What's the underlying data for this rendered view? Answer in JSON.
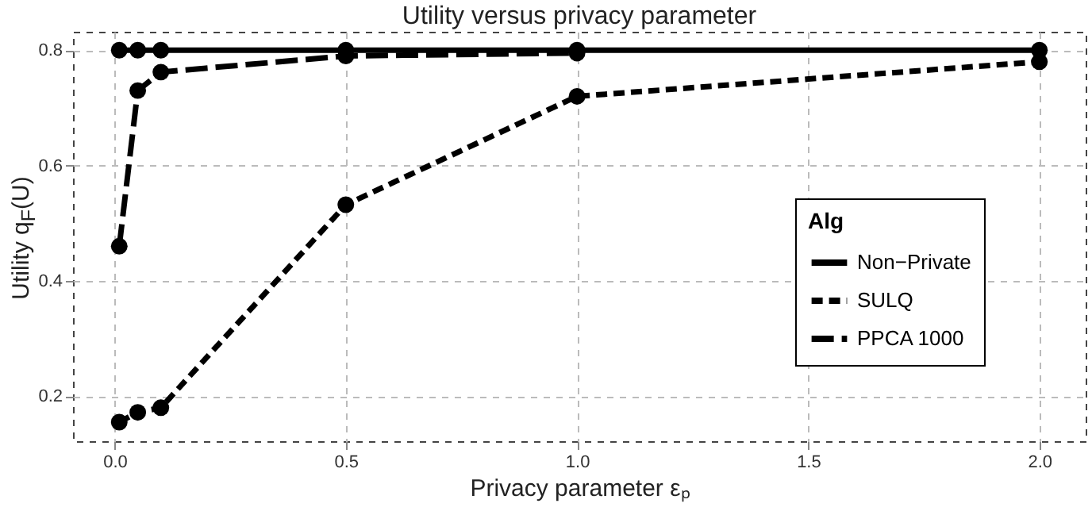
{
  "chart_data": {
    "type": "line",
    "title": "Utility versus privacy parameter",
    "xlabel": "Privacy parameter εₚ",
    "ylabel": "Utility q$_{F}$(U)",
    "legend_title": "Alg",
    "x": [
      0.01,
      0.05,
      0.1,
      0.5,
      1.0,
      2.0
    ],
    "series": [
      {
        "name": "Non−Private",
        "color": "#000000",
        "line_style": "solid",
        "values": [
          0.8,
          0.8,
          0.8,
          0.8,
          0.8,
          0.8
        ]
      },
      {
        "name": "SULQ",
        "color": "#000000",
        "line_style": "dashed",
        "values": [
          0.155,
          0.172,
          0.18,
          0.532,
          0.72,
          0.78
        ]
      },
      {
        "name": "PPCA 1000",
        "color": "#000000",
        "line_style": "dashed",
        "values": [
          0.46,
          0.73,
          0.762,
          0.79,
          0.795,
          null
        ]
      }
    ],
    "xlim": [
      -0.09,
      2.1
    ],
    "ylim": [
      0.122,
      0.832
    ],
    "xticks": [
      {
        "value": 0,
        "label": "0.0"
      },
      {
        "value": 0.5,
        "label": "0.5"
      },
      {
        "value": 1,
        "label": "1.0"
      },
      {
        "value": 1.5,
        "label": "1.5"
      },
      {
        "value": 2,
        "label": "2.0"
      }
    ],
    "yticks": [
      {
        "value": 0.2,
        "label": "0.2"
      },
      {
        "value": 0.4,
        "label": "0.4"
      },
      {
        "value": 0.6,
        "label": "0.6"
      },
      {
        "value": 0.8,
        "label": "0.8"
      }
    ],
    "grid": true,
    "legend": "right",
    "marker": "circle"
  }
}
